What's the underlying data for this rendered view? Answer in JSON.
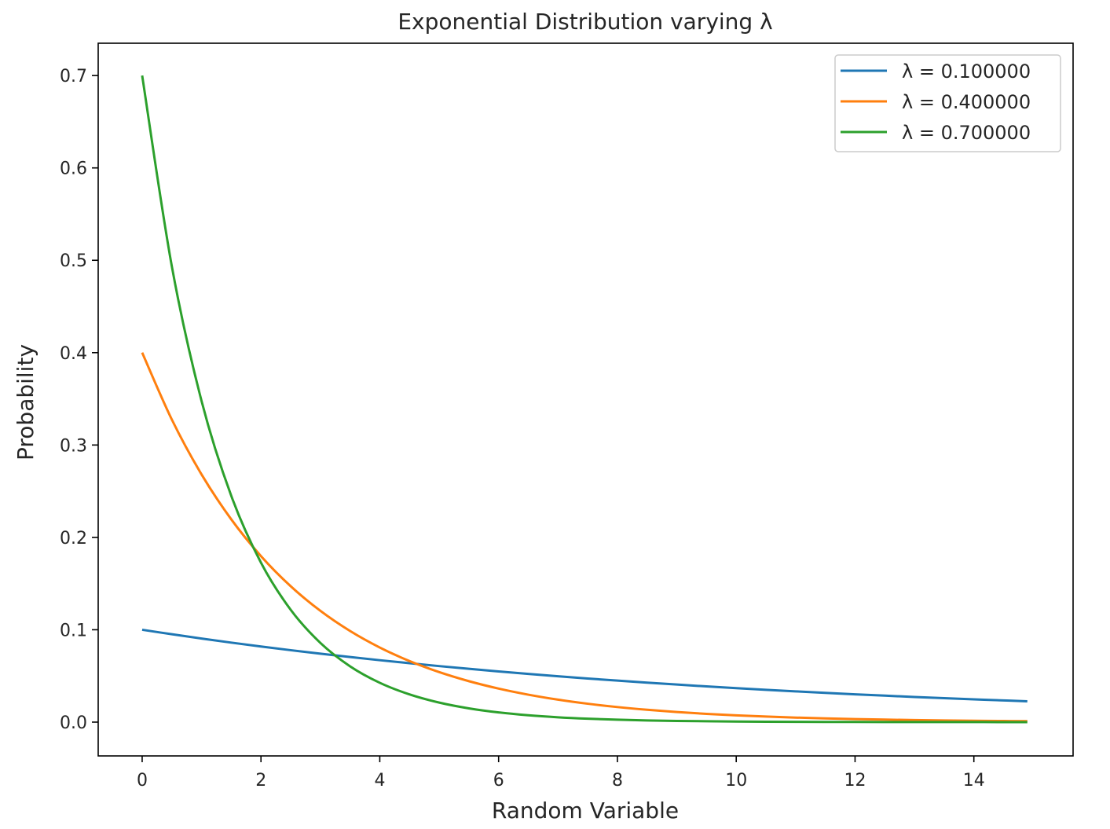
{
  "chart_data": {
    "type": "line",
    "title": "Exponential Distribution varying λ",
    "xlabel": "Random Variable",
    "ylabel": "Probability",
    "xlim": [
      -0.74,
      15.67
    ],
    "ylim": [
      -0.0366,
      0.735
    ],
    "xticks": [
      0,
      2,
      4,
      6,
      8,
      10,
      12,
      14
    ],
    "yticks": [
      0.0,
      0.1,
      0.2,
      0.3,
      0.4,
      0.5,
      0.6,
      0.7
    ],
    "ytick_labels": [
      "0.0",
      "0.1",
      "0.2",
      "0.3",
      "0.4",
      "0.5",
      "0.6",
      "0.7"
    ],
    "grid": false,
    "legend_position": "top-right",
    "x": [
      0,
      0.5,
      1,
      1.5,
      2,
      2.5,
      3,
      3.5,
      4,
      4.5,
      5,
      5.5,
      6,
      6.5,
      7,
      7.5,
      8,
      8.5,
      9,
      9.5,
      10,
      10.5,
      11,
      11.5,
      12,
      12.5,
      13,
      13.5,
      14,
      14.5,
      14.9
    ],
    "series": [
      {
        "name": "λ = 0.100000",
        "color": "#1f77b4",
        "values": [
          0.1,
          0.09512,
          0.09048,
          0.08607,
          0.08187,
          0.07788,
          0.07408,
          0.07047,
          0.06703,
          0.06376,
          0.06065,
          0.05769,
          0.05488,
          0.0522,
          0.04966,
          0.04724,
          0.04493,
          0.04274,
          0.04066,
          0.03867,
          0.03679,
          0.03499,
          0.03329,
          0.03166,
          0.03012,
          0.02865,
          0.02725,
          0.02592,
          0.02466,
          0.02346,
          0.02254
        ]
      },
      {
        "name": "λ = 0.400000",
        "color": "#ff7f0e",
        "values": [
          0.4,
          0.32749,
          0.26813,
          0.21952,
          0.17973,
          0.14715,
          0.12048,
          0.09864,
          0.08076,
          0.06612,
          0.05413,
          0.04432,
          0.03629,
          0.02971,
          0.02432,
          0.01991,
          0.01631,
          0.01335,
          0.01093,
          0.00895,
          0.00733,
          0.006,
          0.00491,
          0.00402,
          0.00329,
          0.0027,
          0.00221,
          0.00181,
          0.00148,
          0.00121,
          0.00103
        ]
      },
      {
        "name": "λ = 0.700000",
        "color": "#2ca02c",
        "values": [
          0.7,
          0.49328,
          0.34761,
          0.24496,
          0.17262,
          0.12164,
          0.08572,
          0.06041,
          0.04257,
          0.03,
          0.02114,
          0.0149,
          0.0105,
          0.0074,
          0.00521,
          0.00367,
          0.00259,
          0.00183,
          0.00129,
          0.0009,
          0.00064,
          0.00045,
          0.00032,
          0.00022,
          0.00016,
          0.00011,
          8e-05,
          6e-05,
          4e-05,
          3e-05,
          2e-05
        ]
      }
    ]
  }
}
